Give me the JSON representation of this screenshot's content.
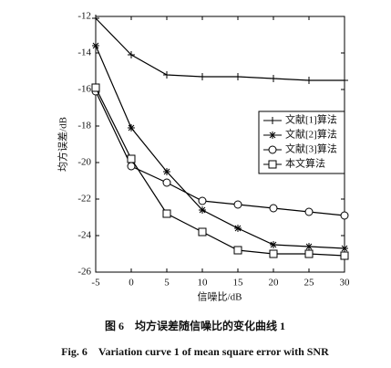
{
  "chart_data": {
    "type": "line",
    "xlabel": "信噪比/dB",
    "ylabel": "均方误差/dB",
    "caption_cn": "图 6　均方误差随信噪比的变化曲线 1",
    "caption_en": "Fig. 6　Variation curve 1 of mean square error with SNR",
    "x": [
      -5,
      0,
      5,
      10,
      15,
      20,
      25,
      30
    ],
    "xlim": [
      -5,
      30
    ],
    "xticks": [
      -5,
      0,
      5,
      10,
      15,
      20,
      25,
      30
    ],
    "ylim": [
      -26,
      -12
    ],
    "yticks": [
      -26,
      -24,
      -22,
      -20,
      -18,
      -16,
      -14,
      -12
    ],
    "legend": "right",
    "series": [
      {
        "name": "文献[1]算法",
        "color": "#000000",
        "marker": "+",
        "values": [
          -12.1,
          -14.1,
          -15.2,
          -15.3,
          -15.3,
          -15.4,
          -15.5,
          -15.5
        ]
      },
      {
        "name": "文献[2]算法",
        "color": "#000000",
        "marker": "*",
        "values": [
          -13.6,
          -18.1,
          -20.5,
          -22.6,
          -23.6,
          -24.5,
          -24.6,
          -24.7
        ]
      },
      {
        "name": "文献[3]算法",
        "color": "#000000",
        "marker": "o",
        "values": [
          -16.1,
          -20.2,
          -21.1,
          -22.1,
          -22.3,
          -22.5,
          -22.7,
          -22.9
        ]
      },
      {
        "name": "本文算法",
        "color": "#000000",
        "marker": "s",
        "values": [
          -15.9,
          -19.8,
          -22.8,
          -23.8,
          -24.8,
          -25.0,
          -25.0,
          -25.1
        ]
      }
    ]
  }
}
